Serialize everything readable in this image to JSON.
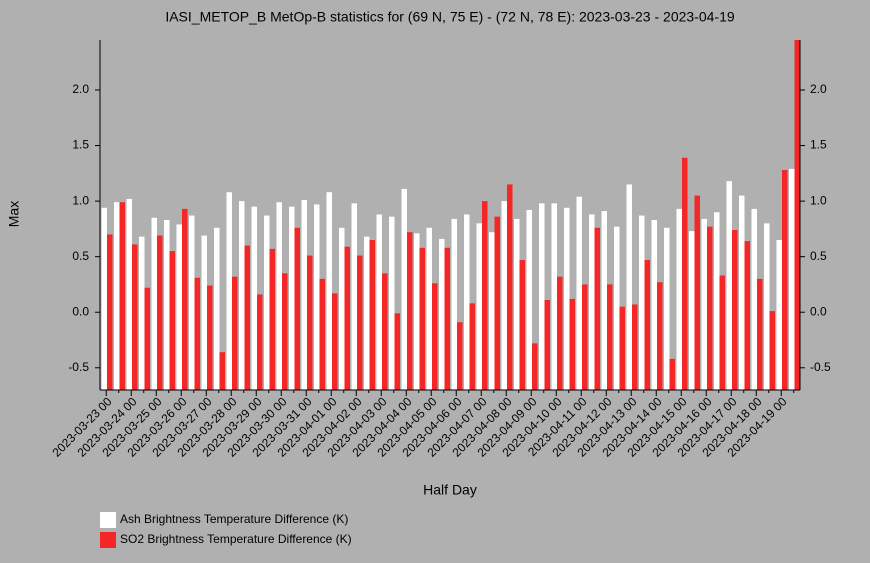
{
  "chart_data": {
    "type": "bar",
    "title": "IASI_METOP_B MetOp-B statistics for (69 N, 75 E) - (72 N, 78 E): 2023-03-23 - 2023-04-19",
    "xlabel": "Half Day",
    "ylabel": "Max",
    "categories": [
      "2023-03-23 00",
      null,
      "2023-03-24 00",
      null,
      "2023-03-25 00",
      null,
      "2023-03-26 00",
      null,
      "2023-03-27 00",
      null,
      "2023-03-28 00",
      null,
      "2023-03-29 00",
      null,
      "2023-03-30 00",
      null,
      "2023-03-31 00",
      null,
      "2023-04-01 00",
      null,
      "2023-04-02 00",
      null,
      "2023-04-03 00",
      null,
      "2023-04-04 00",
      null,
      "2023-04-05 00",
      null,
      "2023-04-06 00",
      null,
      "2023-04-07 00",
      null,
      "2023-04-08 00",
      null,
      "2023-04-09 00",
      null,
      "2023-04-10 00",
      null,
      "2023-04-11 00",
      null,
      "2023-04-12 00",
      null,
      "2023-04-13 00",
      null,
      "2023-04-14 00",
      null,
      "2023-04-15 00",
      null,
      "2023-04-16 00",
      null,
      "2023-04-17 00",
      null,
      "2023-04-18 00",
      null,
      "2023-04-19 00",
      null
    ],
    "series": [
      {
        "name": "Ash Brightness Temperature Difference (K)",
        "color": "#ffffff",
        "values": [
          0.94,
          0.99,
          1.02,
          0.68,
          0.85,
          0.83,
          0.79,
          0.87,
          0.69,
          0.76,
          1.08,
          1.0,
          0.95,
          0.87,
          0.99,
          0.95,
          1.01,
          0.97,
          1.08,
          0.76,
          0.98,
          0.68,
          0.88,
          0.86,
          1.11,
          0.71,
          0.76,
          0.66,
          0.84,
          0.88,
          0.8,
          0.72,
          1.0,
          0.84,
          0.92,
          0.98,
          0.98,
          0.94,
          1.04,
          0.88,
          0.91,
          0.77,
          1.15,
          0.87,
          0.83,
          0.76,
          0.93,
          0.73,
          0.84,
          0.9,
          1.18,
          1.05,
          0.93,
          0.8,
          0.65,
          1.29
        ]
      },
      {
        "name": "SO2 Brightness Temperature Difference (K)",
        "color": "#f52626",
        "values": [
          0.7,
          0.99,
          0.61,
          0.22,
          0.69,
          0.55,
          0.93,
          0.31,
          0.24,
          -0.36,
          0.32,
          0.6,
          0.16,
          0.57,
          0.35,
          0.76,
          0.51,
          0.3,
          0.17,
          0.59,
          0.51,
          0.65,
          0.35,
          -0.01,
          0.72,
          0.58,
          0.26,
          0.58,
          -0.09,
          0.08,
          1.0,
          0.86,
          1.15,
          0.47,
          -0.28,
          0.11,
          0.32,
          0.12,
          0.25,
          0.76,
          0.25,
          0.05,
          0.07,
          0.47,
          0.27,
          -0.42,
          1.39,
          1.05,
          0.77,
          0.33,
          0.74,
          0.64,
          0.3,
          0.01,
          1.28,
          2.45
        ]
      }
    ],
    "ylim": [
      -0.7,
      2.45
    ],
    "yticks": [
      -0.5,
      {
        "value": 0,
        "label": "0.0"
      },
      0.5,
      {
        "value": 1,
        "label": "1.0"
      },
      1.5,
      {
        "value": 2,
        "label": "2.0"
      }
    ],
    "grid": false,
    "legend": "bottom-left"
  }
}
